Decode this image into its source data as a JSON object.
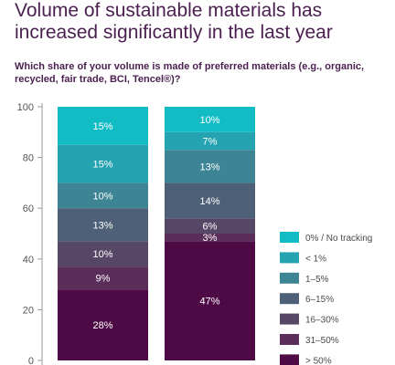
{
  "chart_data": {
    "type": "bar",
    "stacked": true,
    "title": "Volume of sustainable materials has increased significantly in the last year",
    "subtitle": "Which share of your volume is made of preferred materials (e.g., organic, recycled, fair trade, BCI, Tencel®)?",
    "ylim": [
      0,
      100
    ],
    "yticks": [
      "0",
      "20",
      "40",
      "60",
      "80",
      "100"
    ],
    "categories": [
      "",
      ""
    ],
    "series": [
      {
        "name": "> 50%",
        "color": "#4d0a44",
        "values": [
          28,
          47
        ],
        "labels": [
          "28%",
          "47%"
        ]
      },
      {
        "name": "31–50%",
        "color": "#5a2d5a",
        "values": [
          9,
          3
        ],
        "labels": [
          "9%",
          "3%"
        ]
      },
      {
        "name": "16–30%",
        "color": "#554765",
        "values": [
          10,
          6
        ],
        "labels": [
          "10%",
          "6%"
        ]
      },
      {
        "name": "6–15%",
        "color": "#4e6077",
        "values": [
          13,
          14
        ],
        "labels": [
          "13%",
          "14%"
        ]
      },
      {
        "name": "1–5%",
        "color": "#3d8495",
        "values": [
          10,
          13
        ],
        "labels": [
          "10%",
          "13%"
        ]
      },
      {
        "name": "< 1%",
        "color": "#25a3b0",
        "values": [
          15,
          7
        ],
        "labels": [
          "15%",
          "7%"
        ]
      },
      {
        "name": "0% / No tracking",
        "color": "#12bcc5",
        "values": [
          15,
          10
        ],
        "labels": [
          "15%",
          "10%"
        ]
      }
    ],
    "legend_position": "right",
    "grid": false
  }
}
